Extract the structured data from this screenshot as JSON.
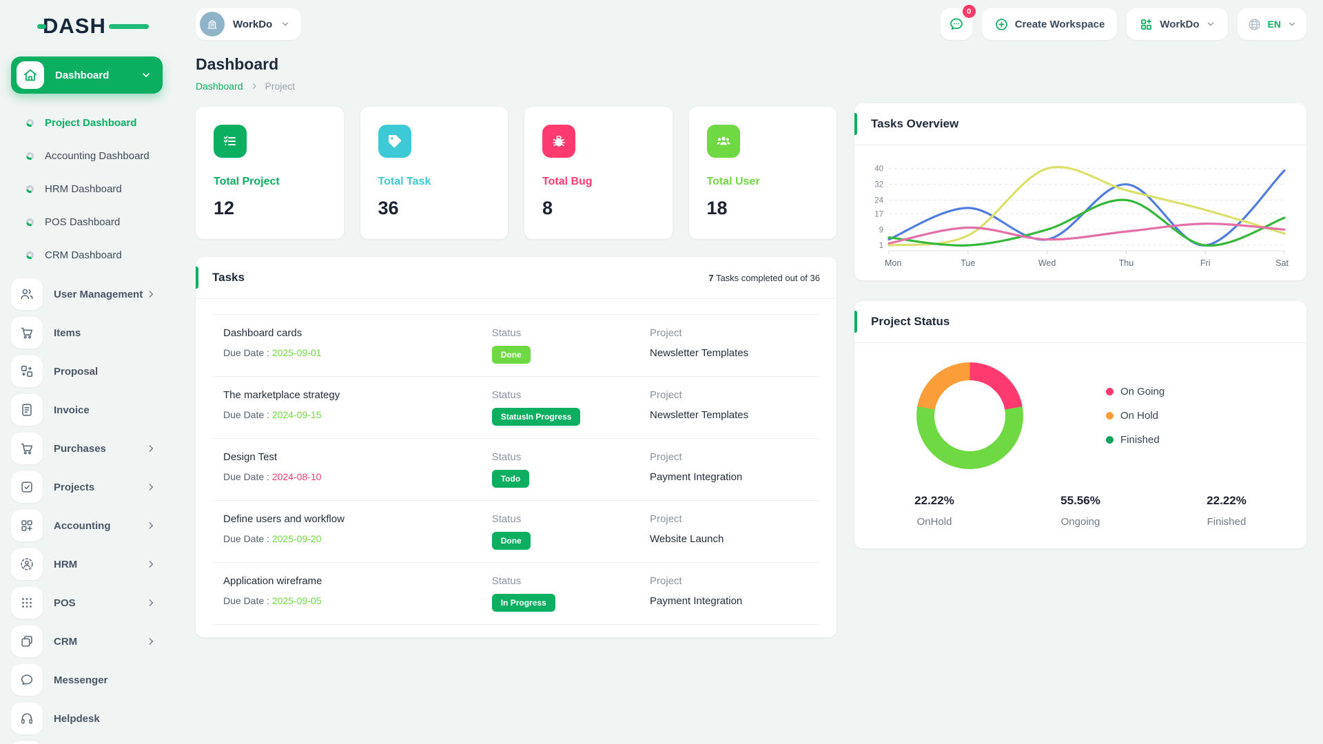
{
  "brand": {
    "name": "DASH",
    "accent_color": "#1fb978"
  },
  "topbar": {
    "workspace_selector": {
      "label": "WorkDo"
    },
    "messages_badge": "0",
    "create_workspace_label": "Create Workspace",
    "workdo_menu_label": "WorkDo",
    "language": "EN"
  },
  "sidebar": {
    "active_item": {
      "label": "Dashboard"
    },
    "sub_items": [
      {
        "label": "Project Dashboard",
        "active": true
      },
      {
        "label": "Accounting Dashboard",
        "active": false
      },
      {
        "label": "HRM Dashboard",
        "active": false
      },
      {
        "label": "POS Dashboard",
        "active": false
      },
      {
        "label": "CRM Dashboard",
        "active": false
      }
    ],
    "items": [
      {
        "label": "User Management",
        "expandable": true
      },
      {
        "label": "Items",
        "expandable": false
      },
      {
        "label": "Proposal",
        "expandable": false
      },
      {
        "label": "Invoice",
        "expandable": false
      },
      {
        "label": "Purchases",
        "expandable": true
      },
      {
        "label": "Projects",
        "expandable": true
      },
      {
        "label": "Accounting",
        "expandable": true
      },
      {
        "label": "HRM",
        "expandable": true
      },
      {
        "label": "POS",
        "expandable": true
      },
      {
        "label": "CRM",
        "expandable": true
      },
      {
        "label": "Messenger",
        "expandable": false
      },
      {
        "label": "Helpdesk",
        "expandable": false
      }
    ]
  },
  "page": {
    "title": "Dashboard",
    "breadcrumb": {
      "link": "Dashboard",
      "current": "Project"
    }
  },
  "stats": [
    {
      "label": "Total Project",
      "value": "12",
      "color": "#0caf60",
      "icon": "checklist-icon"
    },
    {
      "label": "Total Task",
      "value": "36",
      "color": "#3ec9d6",
      "icon": "tag-icon"
    },
    {
      "label": "Total Bug",
      "value": "8",
      "color": "#ff3a6e",
      "icon": "bug-icon"
    },
    {
      "label": "Total User",
      "value": "18",
      "color": "#6fd943",
      "icon": "users-icon"
    }
  ],
  "tasks_panel": {
    "title": "Tasks",
    "summary_count": "7",
    "summary_text": " Tasks completed out of 36",
    "due_label": "Due Date : ",
    "status_label": "Status",
    "project_label": "Project",
    "rows": [
      {
        "title": "Dashboard cards",
        "due": "2025-09-01",
        "due_color": "#6fd943",
        "status": "Done",
        "badge_color": "#6fd943",
        "project": "Newsletter Templates"
      },
      {
        "title": "The marketplace strategy",
        "due": "2024-09-15",
        "due_color": "#6fd943",
        "status": "StatusIn Progress",
        "badge_color": "#0caf60",
        "project": "Newsletter Templates"
      },
      {
        "title": "Design Test",
        "due": "2024-08-10",
        "due_color": "#ff3a6e",
        "status": "Todo",
        "badge_color": "#0caf60",
        "project": "Payment Integration"
      },
      {
        "title": "Define users and workflow",
        "due": "2025-09-20",
        "due_color": "#6fd943",
        "status": "Done",
        "badge_color": "#0caf60",
        "project": "Website Launch"
      },
      {
        "title": "Application wireframe",
        "due": "2025-09-05",
        "due_color": "#6fd943",
        "status": "In Progress",
        "badge_color": "#0caf60",
        "project": "Payment Integration"
      }
    ]
  },
  "chart_data": [
    {
      "type": "line",
      "title": "Tasks Overview",
      "x": [
        "Mon",
        "Tue",
        "Wed",
        "Thu",
        "Fri",
        "Sat"
      ],
      "yticks": [
        40,
        32,
        24,
        17,
        9,
        1
      ],
      "ylim": [
        0,
        42
      ],
      "grid": "dashed-horizontal",
      "legend": "none",
      "series": [
        {
          "name": "series-blue",
          "color": "#4f7de0",
          "values": [
            4,
            20,
            4,
            32,
            1,
            39
          ]
        },
        {
          "name": "series-lime",
          "color": "#dbe06b",
          "values": [
            1,
            6,
            40,
            29,
            19,
            7
          ]
        },
        {
          "name": "series-green",
          "color": "#35b83a",
          "values": [
            5,
            1,
            9,
            24,
            1,
            15
          ]
        },
        {
          "name": "series-pink",
          "color": "#e36fa6",
          "values": [
            2,
            10,
            4,
            8,
            12,
            9
          ]
        }
      ]
    },
    {
      "type": "pie",
      "title": "Project Status",
      "donut": true,
      "slices": [
        {
          "label": "On Going",
          "value": 22.22,
          "color": "#ff3a6e"
        },
        {
          "label": "Ongoing (donut segment)",
          "value": 55.56,
          "color": "#6fd943"
        },
        {
          "label": "On Hold",
          "value": 22.22,
          "color": "#fb9e39"
        }
      ],
      "legend_position": "right",
      "legend": [
        {
          "label": "On Going",
          "color": "#ff3a6e"
        },
        {
          "label": "On Hold",
          "color": "#fb9e39"
        },
        {
          "label": "Finished",
          "color": "#12a45c"
        }
      ],
      "stats": [
        {
          "pct": "22.22%",
          "label": "OnHold"
        },
        {
          "pct": "55.56%",
          "label": "Ongoing"
        },
        {
          "pct": "22.22%",
          "label": "Finished"
        }
      ]
    }
  ],
  "icons": {
    "home": "house outline",
    "messages": "chat bubble with dots",
    "create": "plus in circle",
    "workdo": "grid with plus",
    "language": "globe",
    "chevron": "angle bracket",
    "workspace_avatar": "building in circle"
  }
}
